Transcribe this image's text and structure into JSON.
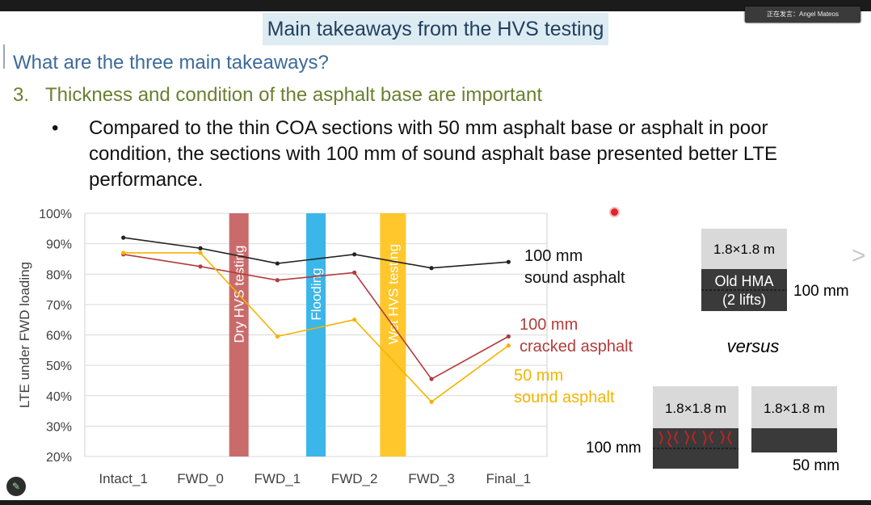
{
  "speaker_label": "正在发言：Angel Mateos",
  "slide": {
    "title": "Main takeaways from the HVS testing",
    "question": "What are the three main takeaways?",
    "takeaway_number": "3.",
    "takeaway_text": "Thickness and condition of the asphalt base are important",
    "bullet": "Compared to the thin COA sections with 50 mm asphalt base or asphalt in poor condition, the sections with 100 mm of sound asphalt base presented better LTE performance."
  },
  "chart_data": {
    "type": "line",
    "ylabel": "LTE under FWD loading",
    "ylim": [
      20,
      100
    ],
    "yticks": [
      "20%",
      "30%",
      "40%",
      "50%",
      "60%",
      "70%",
      "80%",
      "90%",
      "100%"
    ],
    "categories": [
      "Intact_1",
      "FWD_0",
      "FWD_1",
      "FWD_2",
      "FWD_3",
      "Final_1"
    ],
    "grid": "horizontal",
    "series": [
      {
        "name": "100 mm sound asphalt",
        "label_lines": [
          "100 mm",
          "sound asphalt"
        ],
        "color": "#222222",
        "values": [
          92,
          88.5,
          83.5,
          86.5,
          82,
          84
        ]
      },
      {
        "name": "100 mm cracked asphalt",
        "label_lines": [
          "100 mm",
          "cracked asphalt"
        ],
        "color": "#b23c3c",
        "values": [
          86.5,
          82.5,
          78,
          80.5,
          45.5,
          59.5
        ]
      },
      {
        "name": "50 mm sound asphalt",
        "label_lines": [
          "50 mm",
          "sound asphalt"
        ],
        "color": "#f4b400",
        "values": [
          87,
          87,
          59.5,
          65,
          38,
          56.5
        ]
      }
    ],
    "events": [
      {
        "label": "Dry HVS testing",
        "color": "#c96b6b",
        "between": [
          "FWD_0",
          "FWD_1"
        ]
      },
      {
        "label": "Flooding",
        "color": "#3bb6e8",
        "between": [
          "FWD_1",
          "FWD_2"
        ]
      },
      {
        "label": "Wet HVS testing",
        "color": "#ffc72c",
        "between": [
          "FWD_2",
          "FWD_3"
        ]
      }
    ]
  },
  "diagram": {
    "top_slab": {
      "size": "1.8×1.8 m",
      "base_lines": [
        "Old HMA",
        "(2 lifts)"
      ],
      "thickness": "100 mm"
    },
    "versus": "versus",
    "cracked_slab": {
      "size": "1.8×1.8 m",
      "thickness": "100 mm"
    },
    "thin_slab": {
      "size": "1.8×1.8 m",
      "thickness": "50 mm"
    }
  }
}
